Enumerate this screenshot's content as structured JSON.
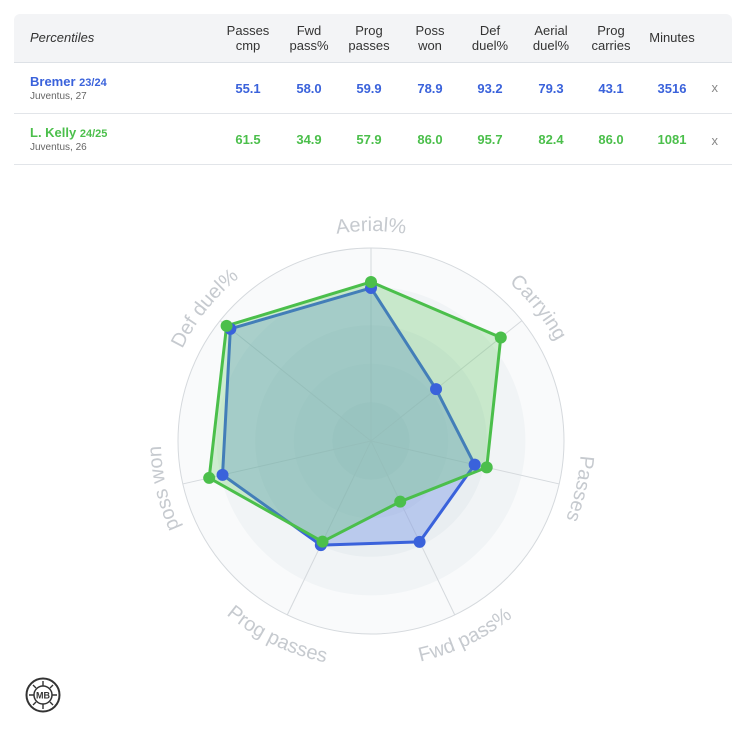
{
  "header": {
    "first": "Percentiles",
    "columns": [
      [
        "Passes",
        "cmp"
      ],
      [
        "Fwd",
        "pass%"
      ],
      [
        "Prog",
        "passes"
      ],
      [
        "Poss",
        "won"
      ],
      [
        "Def",
        "duel%"
      ],
      [
        "Aerial",
        "duel%"
      ],
      [
        "Prog",
        "carries"
      ],
      [
        "Minutes",
        ""
      ]
    ]
  },
  "players": [
    {
      "name": "Bremer",
      "season": "23/24",
      "team": "Juventus, 27",
      "values": [
        "55.1",
        "58.0",
        "59.9",
        "78.9",
        "93.2",
        "79.3",
        "43.1",
        "3516"
      ],
      "remove": "x",
      "color": "#3a62db"
    },
    {
      "name": "L. Kelly",
      "season": "24/25",
      "team": "Juventus, 26",
      "values": [
        "61.5",
        "34.9",
        "57.9",
        "86.0",
        "95.7",
        "82.4",
        "86.0",
        "1081"
      ],
      "remove": "x",
      "color": "#4bbf4b"
    }
  ],
  "chart_data": {
    "type": "radar",
    "axes": [
      "Aerial%",
      "Carrying",
      "Passes",
      "Fwd pass%",
      "Prog passes",
      "poss won",
      "Def duel%"
    ],
    "range": [
      0,
      100
    ],
    "grid": true,
    "series": [
      {
        "name": "Bremer 23/24",
        "color": "#3a62db",
        "values": [
          79.3,
          43.1,
          55.1,
          58.0,
          59.9,
          78.9,
          93.2
        ]
      },
      {
        "name": "L. Kelly 24/25",
        "color": "#4bbf4b",
        "values": [
          82.4,
          86.0,
          61.5,
          34.9,
          57.9,
          86.0,
          95.7
        ]
      }
    ]
  },
  "logo_text": "MB"
}
